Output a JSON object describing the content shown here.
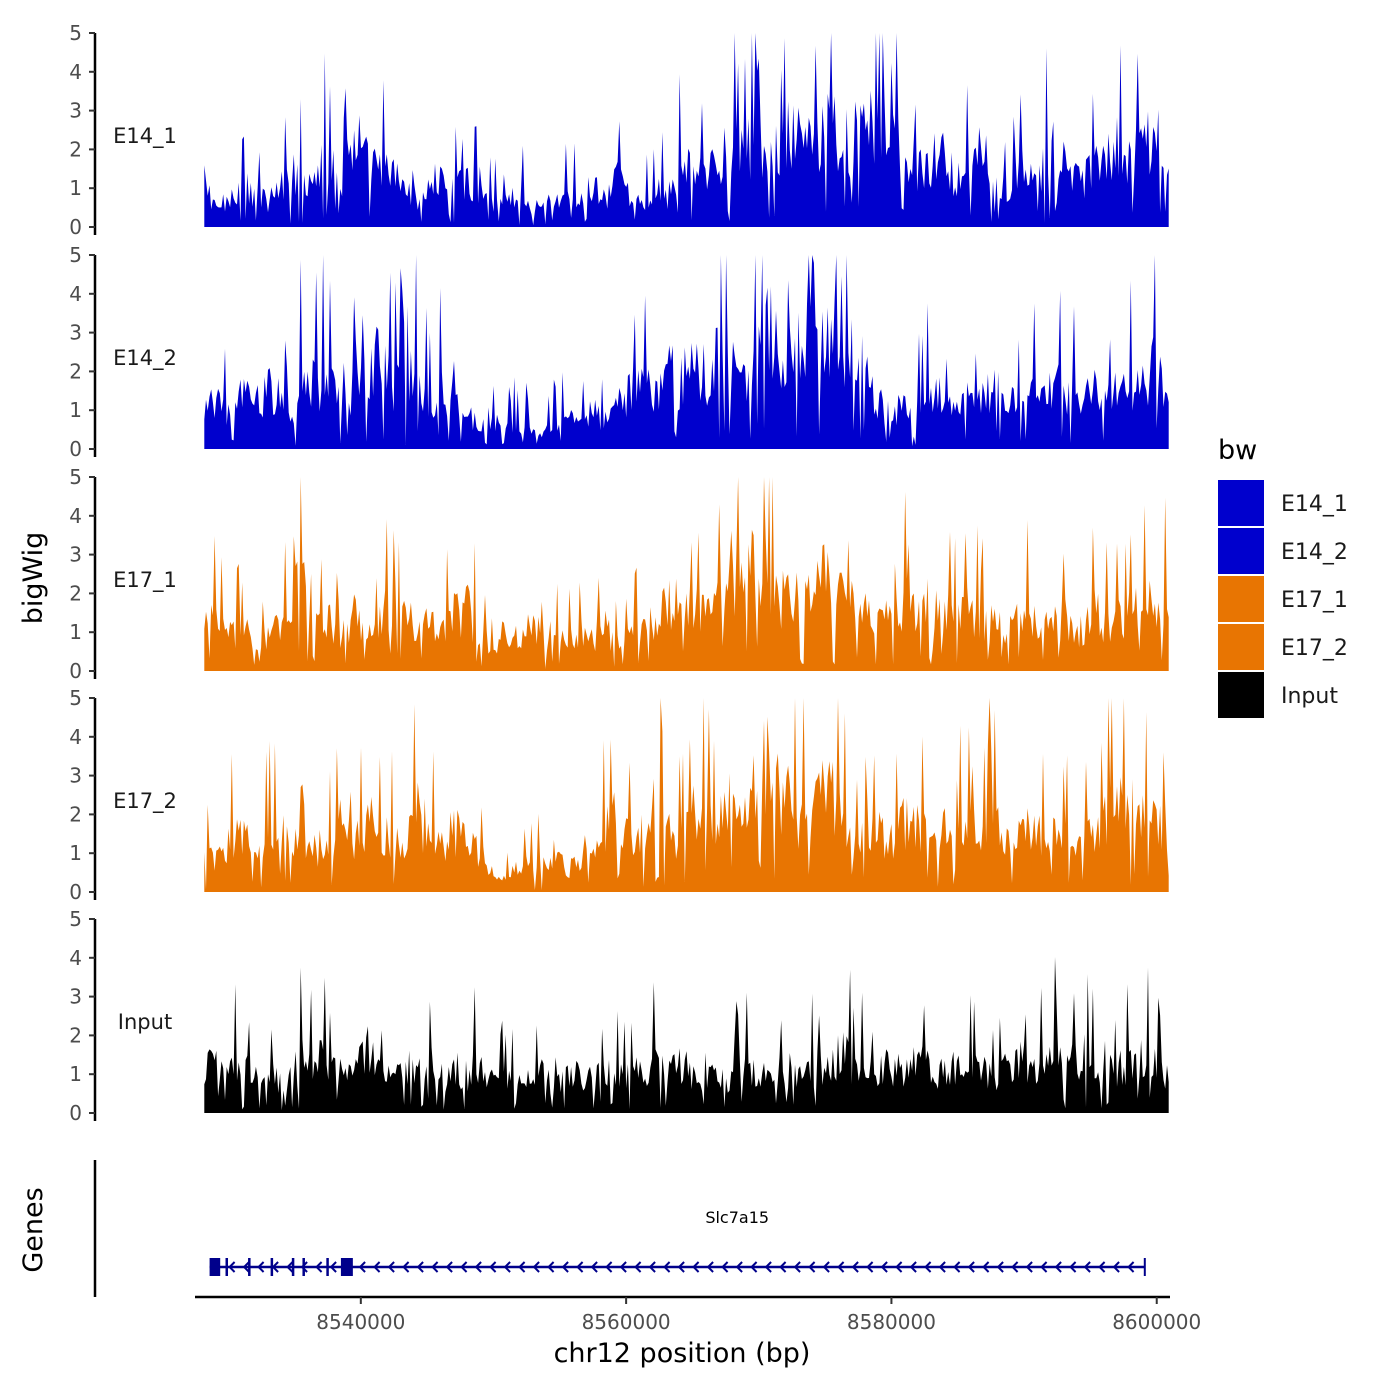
{
  "chart_data": {
    "type": "area",
    "ylabel": "bigWig",
    "xlabel": "chr12 position (bp)",
    "xlim": [
      8527500,
      8601000
    ],
    "region_start": 8528200,
    "region_end": 8600900,
    "ylim": [
      0,
      5
    ],
    "yticks": [
      "0",
      "1",
      "2",
      "3",
      "4",
      "5"
    ],
    "xticks": [
      8540000,
      8560000,
      8580000,
      8600000
    ],
    "xtick_labels": [
      "8540000",
      "8560000",
      "8580000",
      "8600000"
    ],
    "tracks": [
      {
        "name": "E14_1",
        "color": "#0000cd",
        "profile": [
          1.4,
          0.6,
          0.9,
          1.3,
          1.1,
          0.8,
          1.2,
          1.7,
          1.5,
          1.9,
          2.2,
          1.6,
          3.1,
          2.0,
          1.7,
          1.8,
          1.1,
          0.9,
          1.3,
          1.6,
          1.2,
          1.4,
          1.0,
          0.7,
          0.9,
          1.1,
          0.6,
          0.8,
          0.7,
          1.0,
          0.9,
          1.3,
          0.8,
          1.5,
          0.9,
          0.7,
          1.2,
          1.0,
          1.8,
          2.0,
          1.4,
          2.3,
          2.5,
          2.2,
          2.8,
          1.9,
          2.6,
          3.0,
          2.4,
          2.7,
          3.2,
          2.6,
          2.9,
          3.4,
          3.8,
          4.0,
          2.5,
          1.8,
          2.2,
          2.7,
          1.4,
          1.9,
          3.0,
          1.6,
          1.2,
          2.0,
          1.5,
          1.8,
          2.6,
          1.7,
          1.3,
          1.9,
          2.2,
          2.5,
          2.0,
          2.7,
          3.1,
          2.3
        ]
      },
      {
        "name": "E14_2",
        "color": "#0000cd",
        "profile": [
          1.2,
          1.5,
          1.0,
          1.8,
          1.3,
          2.0,
          1.6,
          1.2,
          2.4,
          1.9,
          2.6,
          2.1,
          1.8,
          2.3,
          3.0,
          2.2,
          1.9,
          2.5,
          1.6,
          2.0,
          1.4,
          1.1,
          0.8,
          1.0,
          0.6,
          0.9,
          0.7,
          0.5,
          0.8,
          1.0,
          0.7,
          1.2,
          0.9,
          1.4,
          1.8,
          2.2,
          1.6,
          2.6,
          2.0,
          3.1,
          2.4,
          2.8,
          3.4,
          2.6,
          3.0,
          3.8,
          3.2,
          4.2,
          3.5,
          3.0,
          3.6,
          2.8,
          3.2,
          2.0,
          1.4,
          1.1,
          1.6,
          1.3,
          1.9,
          1.5,
          1.2,
          1.8,
          1.4,
          2.0,
          1.6,
          1.3,
          1.9,
          1.5,
          2.1,
          1.7,
          1.4,
          2.0,
          1.6,
          1.8,
          2.2,
          1.9,
          2.7,
          1.2
        ]
      },
      {
        "name": "E17_1",
        "color": "#e87502",
        "profile": [
          1.3,
          1.8,
          1.1,
          1.4,
          1.0,
          1.2,
          1.5,
          1.9,
          3.6,
          1.4,
          1.0,
          1.3,
          1.8,
          1.1,
          1.6,
          2.2,
          2.0,
          1.4,
          1.6,
          1.2,
          1.8,
          2.0,
          1.1,
          0.8,
          1.2,
          1.0,
          1.5,
          1.1,
          1.3,
          0.9,
          1.2,
          1.0,
          1.4,
          0.8,
          1.1,
          1.3,
          1.6,
          2.2,
          2.6,
          2.0,
          1.8,
          2.4,
          3.3,
          2.6,
          3.9,
          2.9,
          2.3,
          2.1,
          3.4,
          2.7,
          3.2,
          2.5,
          1.9,
          1.8,
          1.5,
          1.7,
          2.1,
          1.8,
          2.6,
          2.0,
          1.6,
          1.9,
          1.5,
          1.7,
          1.3,
          1.6,
          1.9,
          1.4,
          1.8,
          1.6,
          1.3,
          1.9,
          1.5,
          1.7,
          2.0,
          2.3,
          1.8,
          2.1
        ]
      },
      {
        "name": "E17_2",
        "color": "#e87502",
        "profile": [
          1.0,
          1.2,
          1.5,
          1.9,
          1.3,
          1.7,
          2.1,
          1.6,
          1.2,
          1.4,
          1.8,
          2.2,
          1.5,
          2.4,
          2.0,
          1.6,
          1.8,
          2.5,
          1.9,
          1.4,
          2.0,
          1.5,
          1.2,
          0.6,
          0.4,
          0.8,
          1.0,
          0.9,
          1.3,
          0.7,
          1.1,
          1.6,
          2.0,
          2.4,
          1.8,
          2.2,
          2.6,
          2.0,
          1.7,
          2.4,
          2.8,
          2.2,
          3.0,
          2.5,
          3.6,
          4.0,
          3.2,
          2.6,
          2.2,
          2.8,
          3.3,
          2.0,
          1.7,
          2.2,
          1.8,
          1.5,
          2.4,
          2.0,
          1.6,
          2.1,
          2.6,
          2.2,
          1.8,
          2.3,
          2.0,
          1.6,
          2.1,
          1.7,
          1.9,
          2.2,
          1.7,
          2.0,
          2.4,
          2.8,
          3.0,
          2.6,
          2.2,
          2.0
        ]
      },
      {
        "name": "Input",
        "color": "#000000",
        "profile": [
          1.4,
          1.8,
          1.3,
          1.6,
          1.2,
          1.5,
          1.1,
          1.4,
          1.7,
          1.9,
          1.5,
          1.3,
          1.6,
          2.0,
          1.4,
          1.2,
          1.5,
          1.3,
          1.6,
          1.1,
          1.4,
          1.2,
          1.6,
          1.3,
          1.1,
          1.4,
          1.0,
          1.3,
          0.9,
          1.1,
          1.2,
          1.0,
          1.3,
          1.1,
          1.4,
          1.2,
          1.5,
          1.3,
          1.6,
          1.2,
          1.0,
          1.3,
          1.1,
          1.5,
          1.2,
          1.4,
          1.6,
          1.3,
          1.1,
          1.5,
          1.7,
          1.9,
          1.4,
          1.2,
          1.6,
          1.3,
          1.5,
          1.8,
          1.4,
          1.2,
          1.6,
          1.3,
          1.5,
          1.1,
          1.4,
          1.7,
          1.3,
          1.5,
          1.8,
          1.6,
          1.9,
          1.5,
          1.7,
          1.4,
          1.6,
          1.8,
          1.5,
          1.2
        ]
      }
    ],
    "legend": {
      "title": "bw",
      "position": "right",
      "entries": [
        {
          "label": "E14_1",
          "color": "#0000cd"
        },
        {
          "label": "E14_2",
          "color": "#0000cd"
        },
        {
          "label": "E17_1",
          "color": "#e87502"
        },
        {
          "label": "E17_2",
          "color": "#e87502"
        },
        {
          "label": "Input",
          "color": "#000000"
        }
      ]
    },
    "genes": {
      "title": "Genes",
      "color": "#00008b",
      "items": [
        {
          "name": "Slc7a15",
          "start": 8528600,
          "end": 8599100,
          "strand": "-",
          "exons": [
            [
              8528600,
              8529400
            ],
            [
              8529800,
              8529900
            ],
            [
              8531500,
              8531600
            ],
            [
              8533200,
              8533300
            ],
            [
              8534800,
              8534900
            ],
            [
              8535600,
              8535700
            ],
            [
              8537400,
              8537500
            ],
            [
              8538500,
              8539400
            ]
          ]
        }
      ]
    }
  }
}
